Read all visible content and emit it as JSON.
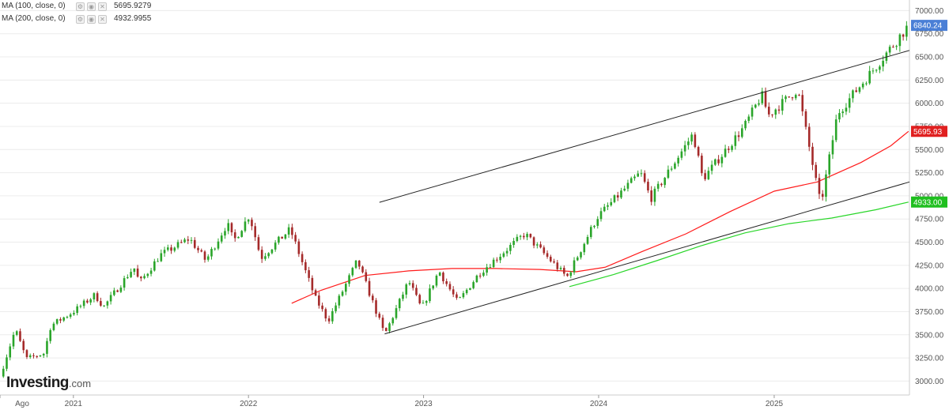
{
  "legend": [
    {
      "label": "MA (100, close, 0)",
      "value": "5695.9279",
      "color": "#ff1a1a"
    },
    {
      "label": "MA (200, close, 0)",
      "value": "4932.9955",
      "color": "#29d629"
    }
  ],
  "price_tags": [
    {
      "text": "6840.24",
      "value": 6840.24,
      "color": "#4a7fd6"
    },
    {
      "text": "5695.93",
      "value": 5695.93,
      "color": "#e02020"
    },
    {
      "text": "4933.00",
      "value": 4933.0,
      "color": "#1fbf1f"
    }
  ],
  "logo": {
    "main": "Investing",
    "suffix": ".com"
  },
  "chart_data": {
    "type": "candlestick",
    "y_axis": {
      "range": [
        2850,
        7080
      ],
      "ticks": [
        3000,
        3250,
        3500,
        3750,
        4000,
        4250,
        4500,
        4750,
        5000,
        5250,
        5500,
        5750,
        6000,
        6250,
        6500,
        6750,
        7000
      ],
      "tick_labels": [
        "3000.00",
        "3250.00",
        "3500.00",
        "3750.00",
        "4000.00",
        "4250.00",
        "4500.00",
        "4750.00",
        "5000.00",
        "5250.00",
        "5500.00",
        "5750.00",
        "6000.00",
        "6250.00",
        "6500.00",
        "6750.00",
        "7000.00"
      ]
    },
    "x_axis": {
      "start": "2020-08-01",
      "end": "2025-10-10",
      "labels": [
        {
          "text": "Ago",
          "date": "2020-08-01"
        },
        {
          "text": "2021",
          "date": "2021-01-01"
        },
        {
          "text": "2022",
          "date": "2022-01-01"
        },
        {
          "text": "2023",
          "date": "2023-01-01"
        },
        {
          "text": "2024",
          "date": "2024-01-01"
        },
        {
          "text": "2025",
          "date": "2025-01-01"
        }
      ]
    },
    "colors": {
      "up": "#2aa52a",
      "down": "#a52a2a",
      "ma100": "#ff1a1a",
      "ma200": "#29d629",
      "trendline": "#222222",
      "grid": "#ececec"
    },
    "close_path": [
      [
        "2020-08-01",
        3050
      ],
      [
        "2020-09-02",
        3560
      ],
      [
        "2020-09-25",
        3240
      ],
      [
        "2020-11-01",
        3300
      ],
      [
        "2020-11-15",
        3600
      ],
      [
        "2021-01-01",
        3750
      ],
      [
        "2021-02-15",
        3930
      ],
      [
        "2021-03-05",
        3800
      ],
      [
        "2021-05-07",
        4230
      ],
      [
        "2021-05-19",
        4060
      ],
      [
        "2021-07-01",
        4360
      ],
      [
        "2021-08-31",
        4540
      ],
      [
        "2021-10-04",
        4300
      ],
      [
        "2021-11-18",
        4700
      ],
      [
        "2021-12-01",
        4510
      ],
      [
        "2022-01-03",
        4790
      ],
      [
        "2022-01-27",
        4330
      ],
      [
        "2022-03-29",
        4640
      ],
      [
        "2022-05-20",
        3900
      ],
      [
        "2022-06-16",
        3650
      ],
      [
        "2022-08-16",
        4300
      ],
      [
        "2022-10-12",
        3500
      ],
      [
        "2022-12-01",
        4080
      ],
      [
        "2022-12-28",
        3780
      ],
      [
        "2023-02-02",
        4190
      ],
      [
        "2023-03-13",
        3850
      ],
      [
        "2023-04-28",
        4170
      ],
      [
        "2023-07-31",
        4590
      ],
      [
        "2023-10-27",
        4120
      ],
      [
        "2023-12-29",
        4770
      ],
      [
        "2024-03-28",
        5250
      ],
      [
        "2024-04-19",
        4970
      ],
      [
        "2024-07-16",
        5670
      ],
      [
        "2024-08-05",
        5180
      ],
      [
        "2024-10-31",
        5750
      ],
      [
        "2024-12-06",
        6090
      ],
      [
        "2024-12-20",
        5870
      ],
      [
        "2025-02-19",
        6150
      ],
      [
        "2025-04-08",
        4900
      ],
      [
        "2025-05-13",
        5890
      ],
      [
        "2025-07-31",
        6390
      ],
      [
        "2025-10-08",
        6840
      ]
    ],
    "ma100": [
      [
        "2022-04-01",
        3840
      ],
      [
        "2022-06-01",
        3980
      ],
      [
        "2022-09-01",
        4140
      ],
      [
        "2022-12-01",
        4190
      ],
      [
        "2023-03-01",
        4215
      ],
      [
        "2023-06-01",
        4215
      ],
      [
        "2023-09-01",
        4205
      ],
      [
        "2023-11-15",
        4180
      ],
      [
        "2024-01-15",
        4230
      ],
      [
        "2024-04-01",
        4400
      ],
      [
        "2024-07-01",
        4590
      ],
      [
        "2024-10-01",
        4830
      ],
      [
        "2025-01-01",
        5050
      ],
      [
        "2025-04-01",
        5150
      ],
      [
        "2025-07-01",
        5360
      ],
      [
        "2025-09-01",
        5540
      ],
      [
        "2025-10-08",
        5695.93
      ]
    ],
    "ma200": [
      [
        "2023-11-01",
        4020
      ],
      [
        "2024-02-01",
        4150
      ],
      [
        "2024-05-01",
        4300
      ],
      [
        "2024-08-01",
        4460
      ],
      [
        "2024-11-01",
        4600
      ],
      [
        "2025-02-01",
        4700
      ],
      [
        "2025-05-01",
        4760
      ],
      [
        "2025-08-01",
        4850
      ],
      [
        "2025-10-08",
        4933.0
      ]
    ],
    "trendlines": [
      {
        "from": [
          "2022-10-12",
          3510
        ],
        "to": [
          "2025-10-10",
          5150
        ]
      },
      {
        "from": [
          "2022-10-01",
          4930
        ],
        "to": [
          "2025-10-10",
          6570
        ]
      }
    ]
  }
}
